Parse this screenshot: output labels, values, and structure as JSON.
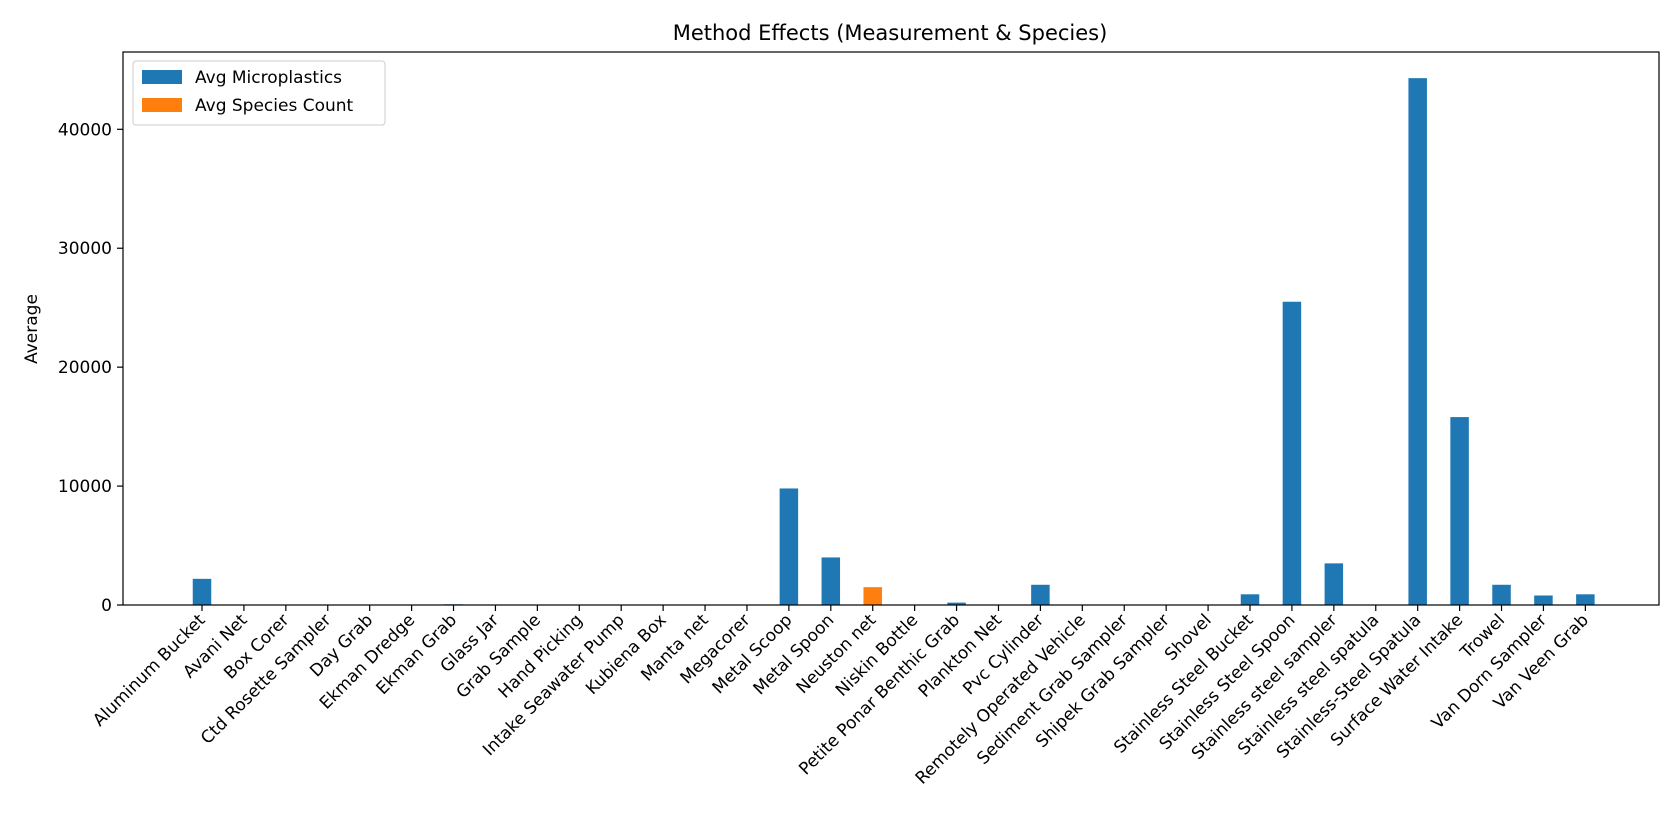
{
  "chart_data": {
    "type": "bar",
    "title": "Method Effects (Measurement & Species)",
    "xlabel": "",
    "ylabel": "Average",
    "ylim": [
      0,
      46500
    ],
    "yticks": [
      0,
      10000,
      20000,
      30000,
      40000
    ],
    "ytick_labels": [
      "0",
      "10000",
      "20000",
      "30000",
      "40000"
    ],
    "grid": false,
    "legend_position": "top-left",
    "categories": [
      "Aluminum Bucket",
      "Avani Net",
      "Box Corer",
      "Ctd Rosette Sampler",
      "Day Grab",
      "Ekman Dredge",
      "Ekman Grab",
      "Glass Jar",
      "Grab Sample",
      "Hand Picking",
      "Intake Seawater Pump",
      "Kubiena Box",
      "Manta net",
      "Megacorer",
      "Metal Scoop",
      "Metal Spoon",
      "Neuston net",
      "Niskin Bottle",
      "Petite Ponar Benthic Grab",
      "Plankton Net",
      "Pvc Cylinder",
      "Remotely Operated Vehicle",
      "Sediment Grab Sampler",
      "Shipek Grab Sampler",
      "Shovel",
      "Stainless Steel Bucket",
      "Stainless Steel Spoon",
      "Stainless steel sampler",
      "Stainless steel spatula",
      "Stainless-Steel Spatula",
      "Surface Water Intake",
      "Trowel",
      "Van Dorn Sampler",
      "Van Veen Grab"
    ],
    "series": [
      {
        "name": "Avg Microplastics",
        "color": "#1f77b4",
        "values": [
          2200,
          0,
          0,
          0,
          0,
          30,
          60,
          0,
          0,
          0,
          0,
          0,
          0,
          20,
          9800,
          4000,
          0,
          0,
          200,
          0,
          1700,
          0,
          0,
          0,
          0,
          900,
          25500,
          3500,
          0,
          44300,
          15800,
          1700,
          800,
          900
        ]
      },
      {
        "name": "Avg Species Count",
        "color": "#ff7f0e",
        "values": [
          0,
          0,
          0,
          0,
          0,
          0,
          0,
          0,
          0,
          0,
          0,
          0,
          0,
          0,
          0,
          0,
          1500,
          0,
          0,
          0,
          0,
          0,
          0,
          0,
          0,
          0,
          0,
          0,
          0,
          0,
          0,
          0,
          0,
          0
        ]
      }
    ]
  }
}
